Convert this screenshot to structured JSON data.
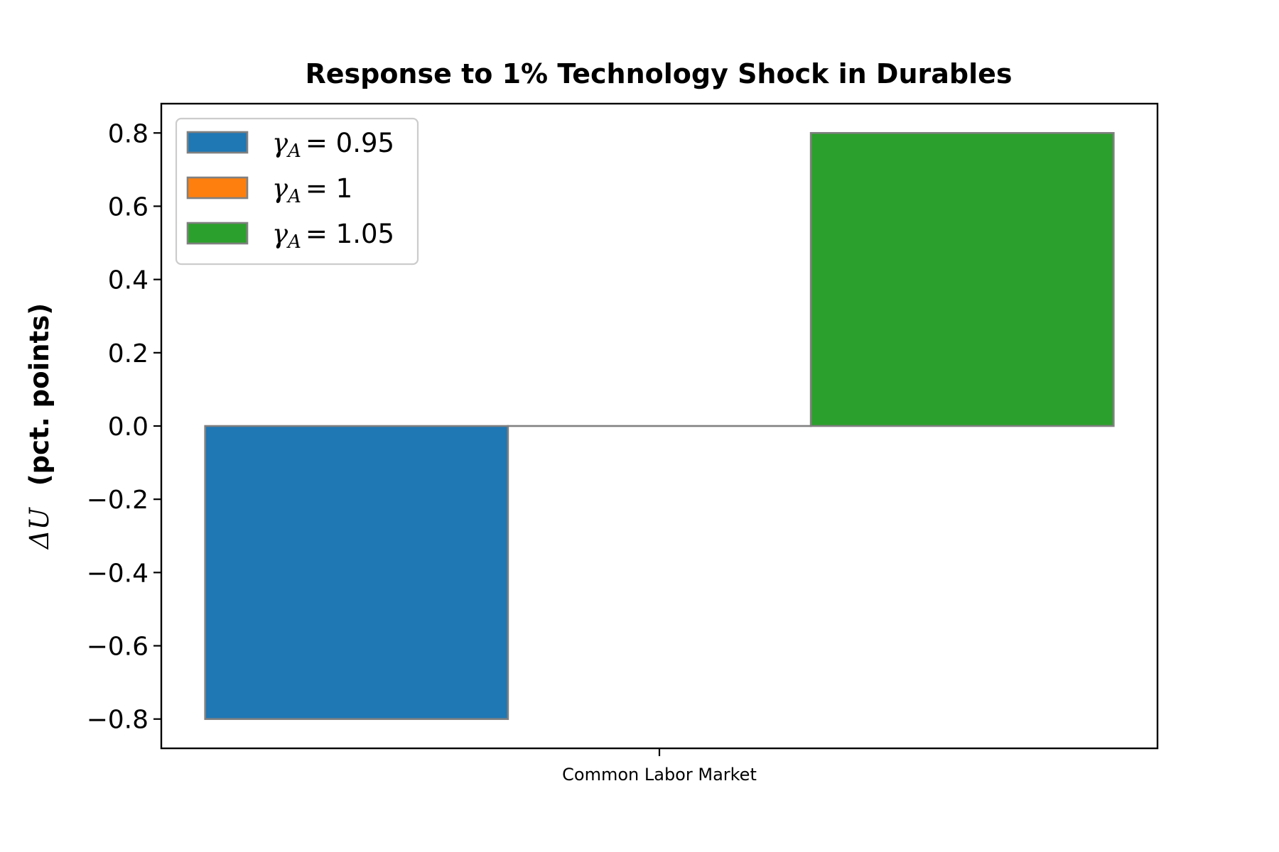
{
  "chart_data": {
    "type": "bar",
    "title": "Response to 1% Technology Shock in Durables",
    "ylabel": "ΔU  (pct. points)",
    "ylabel_symbol": "ΔU",
    "ylabel_text": "(pct. points)",
    "xlabel": "",
    "categories": [
      "Common Labor Market"
    ],
    "ylim": [
      -0.88,
      0.88
    ],
    "yticks": [
      -0.8,
      -0.6,
      -0.4,
      -0.2,
      0.0,
      0.2,
      0.4,
      0.6,
      0.8
    ],
    "grid": false,
    "legend_position": "top-left",
    "series": [
      {
        "name": "γA = 0.95",
        "symbol": "γ",
        "subscript": "A",
        "value_text": "= 0.95",
        "color": "#1f77b4",
        "values": [
          -0.8
        ]
      },
      {
        "name": "γA = 1",
        "symbol": "γ",
        "subscript": "A",
        "value_text": "= 1",
        "color": "#ff7f0e",
        "values": [
          0.0
        ]
      },
      {
        "name": "γA = 1.05",
        "symbol": "γ",
        "subscript": "A",
        "value_text": "= 1.05",
        "color": "#2ca02c",
        "values": [
          0.8
        ]
      }
    ],
    "bar_edge_color": "#808080"
  }
}
